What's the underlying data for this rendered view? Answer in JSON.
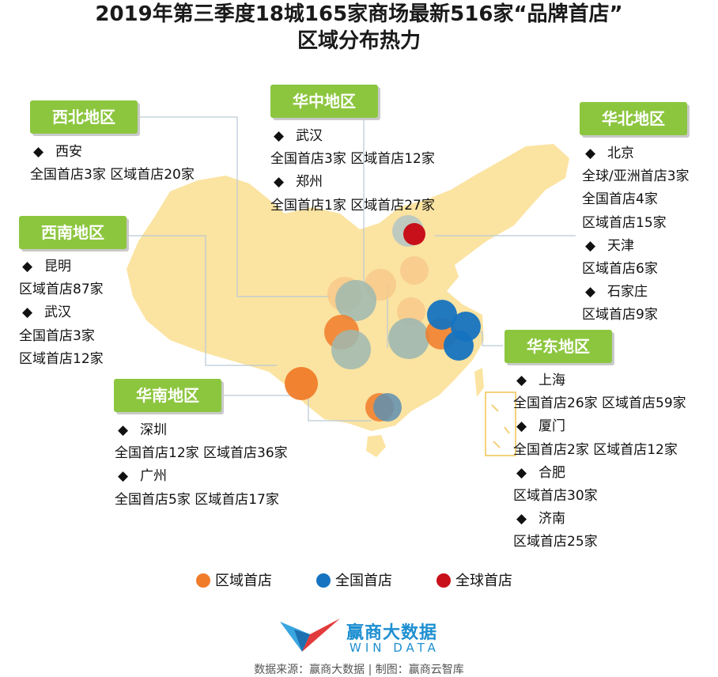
{
  "title": {
    "line1": "2019年第三季度18城165家商场最新516家“品牌首店”",
    "line2": "区域分布热力"
  },
  "colors": {
    "map_fill": "#fbe3a1",
    "regional": "#f07c2a",
    "national": "#1673c0",
    "global": "#c8101a",
    "tag_green": "#8cc63f",
    "leader_line": "#b9c9d4"
  },
  "regions": {
    "northwest": {
      "name": "西北地区",
      "lines": [
        {
          "bullet": "◆",
          "text": "西安"
        },
        {
          "bullet": "",
          "text": "全国首店3家  区域首店20家"
        }
      ]
    },
    "central": {
      "name": "华中地区",
      "lines": [
        {
          "bullet": "◆",
          "text": "武汉"
        },
        {
          "bullet": "",
          "text": "全国首店3家  区域首店12家"
        },
        {
          "bullet": "◆",
          "text": "郑州"
        },
        {
          "bullet": "",
          "text": "全国首店1家  区域首店27家"
        }
      ]
    },
    "north": {
      "name": "华北地区",
      "lines": [
        {
          "bullet": "◆",
          "text": "北京"
        },
        {
          "bullet": "",
          "text": "全球/亚洲首店3家"
        },
        {
          "bullet": "",
          "text": "全国首店4家"
        },
        {
          "bullet": "",
          "text": "区域首店15家"
        },
        {
          "bullet": "◆",
          "text": "天津"
        },
        {
          "bullet": "",
          "text": "区域首店6家"
        },
        {
          "bullet": "◆",
          "text": "石家庄"
        },
        {
          "bullet": "",
          "text": "区域首店9家"
        }
      ]
    },
    "southwest": {
      "name": "西南地区",
      "lines": [
        {
          "bullet": "◆",
          "text": "昆明"
        },
        {
          "bullet": "",
          "text": "区域首店87家"
        },
        {
          "bullet": "◆",
          "text": "武汉"
        },
        {
          "bullet": "",
          "text": "全国首店3家"
        },
        {
          "bullet": "",
          "text": "区域首店12家"
        }
      ]
    },
    "east": {
      "name": "华东地区",
      "lines": [
        {
          "bullet": "◆",
          "text": "上海"
        },
        {
          "bullet": "",
          "text": "全国首店26家  区域首店59家"
        },
        {
          "bullet": "◆",
          "text": "厦门"
        },
        {
          "bullet": "",
          "text": "全国首店2家  区域首店12家"
        },
        {
          "bullet": "◆",
          "text": "合肥"
        },
        {
          "bullet": "",
          "text": "区域首店30家"
        },
        {
          "bullet": "◆",
          "text": "济南"
        },
        {
          "bullet": "",
          "text": "区域首店25家"
        }
      ]
    },
    "south": {
      "name": "华南地区",
      "lines": [
        {
          "bullet": "◆",
          "text": "深圳"
        },
        {
          "bullet": "",
          "text": "全国首店12家  区域首店36家"
        },
        {
          "bullet": "◆",
          "text": "广州"
        },
        {
          "bullet": "",
          "text": "全国首店5家  区域首店17家"
        }
      ]
    }
  },
  "legend": {
    "regional": "区域首店",
    "national": "全国首店",
    "global": "全球首店"
  },
  "logo": {
    "name": "赢商大数据",
    "sub": "WIN DATA"
  },
  "footer": "数据来源：赢商大数据 | 制图：赢商云智库"
}
